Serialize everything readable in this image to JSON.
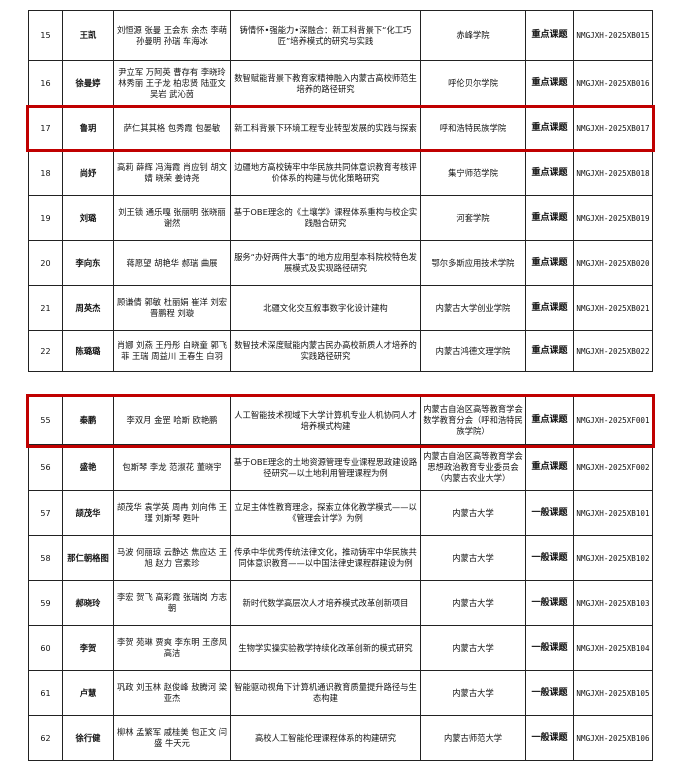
{
  "highlight_color": "#c00000",
  "table1": {
    "rows": [
      {
        "no": "15",
        "leader": "王凯",
        "members": "刘恒源 张曼 王会东 余杰 李萌 孙曼明 孙瑞 车海冰",
        "title": "铸情怀•强能力•深融合：新工科背景下“化工巧匠”培养模式的研究与实践",
        "institution": "赤峰学院",
        "category": "重点课题",
        "code": "NMGJXH-2025XB015"
      },
      {
        "no": "16",
        "leader": "徐曼婷",
        "members": "尹立军 万阿英 曹存有 李晓玲 林秀丽 王子龙 柏忠贤 陆亚文 吴岩 武沁茵",
        "title": "数智赋能背景下教育家精神融入内蒙古高校师范生培养的路径研究",
        "institution": "呼伦贝尔学院",
        "category": "重点课题",
        "code": "NMGJXH-2025XB016"
      },
      {
        "no": "17",
        "leader": "鲁玥",
        "members": "萨仁其其格 包秀霞 包晏敏",
        "title": "新工科背景下环境工程专业转型发展的实践与探索",
        "institution": "呼和浩特民族学院",
        "category": "重点课题",
        "code": "NMGJXH-2025XB017"
      },
      {
        "no": "18",
        "leader": "尚妤",
        "members": "高莉 薛辉 冯海霞 肖应钊 胡文婧 晓荣 姜诗尧",
        "title": "边疆地方高校铸牢中华民族共同体意识教育考核评价体系的构建与优化策略研究",
        "institution": "集宁师范学院",
        "category": "重点课题",
        "code": "NMGJXH-2025XB018"
      },
      {
        "no": "19",
        "leader": "刘璐",
        "members": "刘王锁 通乐嘎 张丽明 张晓丽 谢然",
        "title": "基于OBE理念的《土壤学》课程体系重构与校企实践融合研究",
        "institution": "河套学院",
        "category": "重点课题",
        "code": "NMGJXH-2025XB019"
      },
      {
        "no": "20",
        "leader": "李向东",
        "members": "蒋愿望 胡艳华 郝瑞 曲展",
        "title": "服务“办好两件大事”的地方应用型本科院校特色发展模式及实现路径研究",
        "institution": "鄂尔多斯应用技术学院",
        "category": "重点课题",
        "code": "NMGJXH-2025XB020"
      },
      {
        "no": "21",
        "leader": "周英杰",
        "members": "顾谦倩 郭敏 杜丽娟 崔洋 刘宏 晋鹏程 刘璇",
        "title": "北疆文化交互叙事数字化设计建构",
        "institution": "内蒙古大学创业学院",
        "category": "重点课题",
        "code": "NMGJXH-2025XB021"
      },
      {
        "no": "22",
        "leader": "陈璐璐",
        "members": "肖娜 刘燕 王丹彤 白晓童 郭飞菲 王瑞 周益川 王春生 白羽",
        "title": "数智技术深度赋能内蒙古民办高校新质人才培养的实践路径研究",
        "institution": "内蒙古鸿德文理学院",
        "category": "重点课题",
        "code": "NMGJXH-2025XB022"
      }
    ]
  },
  "table2": {
    "rows": [
      {
        "no": "55",
        "leader": "秦鹏",
        "members": "李双月 金罡 哈斯 欧艳鹏",
        "title": "人工智能技术视域下大学计算机专业人机协同人才培养模式构建",
        "institution": "内蒙古自治区高等教育学会数学教育分会（呼和浩特民族学院）",
        "category": "重点课题",
        "code": "NMGJXH-2025XF001"
      },
      {
        "no": "56",
        "leader": "盛艳",
        "members": "包斯琴 李龙 范淑花 董晓宇",
        "title": "基于OBE理念的土地资源管理专业课程思政建设路径研究—以土地利用管理课程为例",
        "institution": "内蒙古自治区高等教育学会思想政治教育专业委员会（内蒙古农业大学）",
        "category": "重点课题",
        "code": "NMGJXH-2025XF002"
      },
      {
        "no": "57",
        "leader": "颉茂华",
        "members": "颉茂华 袁学英 周冉 刘向伟 王瑾 刘斯琴 甦叶",
        "title": "立足主体性教育理念，探索立体化教学模式——以《管理会计学》为例",
        "institution": "内蒙古大学",
        "category": "一般课题",
        "code": "NMGJXH-2025XB101"
      },
      {
        "no": "58",
        "leader": "那仁朝格图",
        "members": "马波 何丽琼 云静达 焦应达 王旭 赵力 宫素珍",
        "title": "传承中华优秀传统法律文化，推动铸牢中华民族共同体意识教育——以中国法律史课程群建设为例",
        "institution": "内蒙古大学",
        "category": "一般课题",
        "code": "NMGJXH-2025XB102"
      },
      {
        "no": "59",
        "leader": "郝晓玲",
        "members": "李宏 贺飞 高彩霞 张瑞岗 方志朝",
        "title": "新时代数学高层次人才培养模式改革创新项目",
        "institution": "内蒙古大学",
        "category": "一般课题",
        "code": "NMGJXH-2025XB103"
      },
      {
        "no": "60",
        "leader": "李贺",
        "members": "李贺 苑琳 贾爽 李东明 王彦凤 高洁",
        "title": "生物学实操实验教学持续化改革创新的模式研究",
        "institution": "内蒙古大学",
        "category": "一般课题",
        "code": "NMGJXH-2025XB104"
      },
      {
        "no": "61",
        "leader": "卢慧",
        "members": "巩政 刘玉林 赵俊峰 敖腾河 梁亚杰",
        "title": "智能驱动视角下计算机通识教育质量提升路径与生态构建",
        "institution": "内蒙古大学",
        "category": "一般课题",
        "code": "NMGJXH-2025XB105"
      },
      {
        "no": "62",
        "leader": "徐行健",
        "members": "柳林 孟繁军 戚桂美 包正文 闫盛 牛天元",
        "title": "高校人工智能伦理课程体系的构建研究",
        "institution": "内蒙古师范大学",
        "category": "一般课题",
        "code": "NMGJXH-2025XB106"
      }
    ]
  }
}
